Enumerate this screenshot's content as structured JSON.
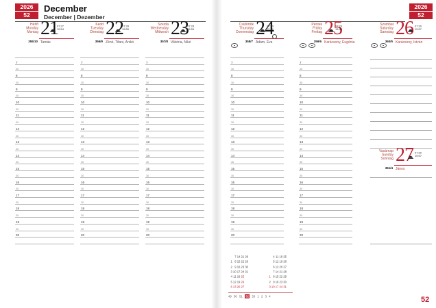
{
  "colors": {
    "accent": "#c01f2f",
    "day_names_red": "#ad463c",
    "grid_line": "#b3b3b3"
  },
  "corner": {
    "year": "2026",
    "week": "52"
  },
  "title": {
    "month": "December",
    "subtitle": "December | Dezember"
  },
  "page_number": "52",
  "schedule": {
    "hours": [
      "7",
      "8",
      "9",
      "10",
      "11",
      "12",
      "13",
      "14",
      "15",
      "16",
      "17",
      "18",
      "19",
      "20"
    ],
    "half_label": "30"
  },
  "days": [
    {
      "hu": "Hétfő",
      "en": "Monday",
      "de": "Montag",
      "num": "21",
      "sunrise": "07:27",
      "sunset": "15:54",
      "doy": "355/10",
      "names": "Tamás",
      "red": false,
      "symbols": 0,
      "moon": ""
    },
    {
      "hu": "Kedd",
      "en": "Tuesday",
      "de": "Dienstag",
      "num": "22",
      "sunrise": "07:28",
      "sunset": "15:55",
      "doy": "356/9",
      "names": "Zénó, Tifani, Anikó",
      "red": false,
      "symbols": 0,
      "moon": ""
    },
    {
      "hu": "Szerda",
      "en": "Wednesday",
      "de": "Mittwoch",
      "num": "23",
      "sunrise": "07:28",
      "sunset": "15:55",
      "doy": "357/8",
      "names": "Viktória, Niké",
      "red": false,
      "symbols": 0,
      "moon": ""
    },
    {
      "hu": "Csütörtök",
      "en": "Thursday",
      "de": "Donnerstag",
      "num": "24",
      "sunrise": "07:29",
      "sunset": "15:56",
      "doy": "358/7",
      "names": "Ádám, Éva",
      "red": false,
      "symbols": 1,
      "moon": "full"
    },
    {
      "hu": "Péntek",
      "en": "Friday",
      "de": "Freitag",
      "num": "25",
      "sunrise": "07:29",
      "sunset": "15:56",
      "doy": "359/6",
      "names": "Karácsony, Eugénia",
      "red": true,
      "symbols": 2,
      "moon": ""
    },
    {
      "hu": "Szombat",
      "en": "Saturday",
      "de": "Samstag",
      "num": "26",
      "sunrise": "07:30",
      "sunset": "15:57",
      "doy": "360/5",
      "names": "Karácsony, István",
      "red": true,
      "symbols": 2,
      "moon": ""
    },
    {
      "hu": "Vasárnap",
      "en": "Sunday",
      "de": "Sonntag",
      "num": "27",
      "sunrise": "07:30",
      "sunset": "15:57",
      "doy": "361/4",
      "names": "János",
      "red": true,
      "symbols": 0,
      "moon": ""
    }
  ],
  "mini_calendars": [
    {
      "rows": [
        [
          "",
          "7",
          "14",
          "21",
          "28"
        ],
        [
          "1",
          "8",
          "15",
          "22",
          "29"
        ],
        [
          "2",
          "9",
          "16",
          "23",
          "30"
        ],
        [
          "3",
          "10",
          "17",
          "24",
          "31"
        ],
        [
          "4",
          "11",
          "18",
          "25",
          ""
        ],
        [
          "5",
          "12",
          "19",
          "26",
          ""
        ],
        [
          "6",
          "13",
          "20",
          "27",
          ""
        ]
      ],
      "red": [
        "25",
        "26",
        "6",
        "13",
        "20",
        "27"
      ]
    },
    {
      "rows": [
        [
          "",
          "4",
          "11",
          "18",
          "25"
        ],
        [
          "",
          "5",
          "12",
          "19",
          "26"
        ],
        [
          "",
          "6",
          "13",
          "20",
          "27"
        ],
        [
          "",
          "7",
          "14",
          "21",
          "28"
        ],
        [
          "1",
          "8",
          "15",
          "22",
          "29"
        ],
        [
          "2",
          "9",
          "16",
          "23",
          "30"
        ],
        [
          "3",
          "10",
          "17",
          "24",
          "31"
        ]
      ],
      "red": [
        "1",
        "3",
        "10",
        "17",
        "24",
        "31"
      ]
    }
  ],
  "week_strip": {
    "weeks": [
      "49",
      "50",
      "51",
      "52",
      "53",
      "1",
      "2",
      "3",
      "4"
    ],
    "current": "52"
  }
}
